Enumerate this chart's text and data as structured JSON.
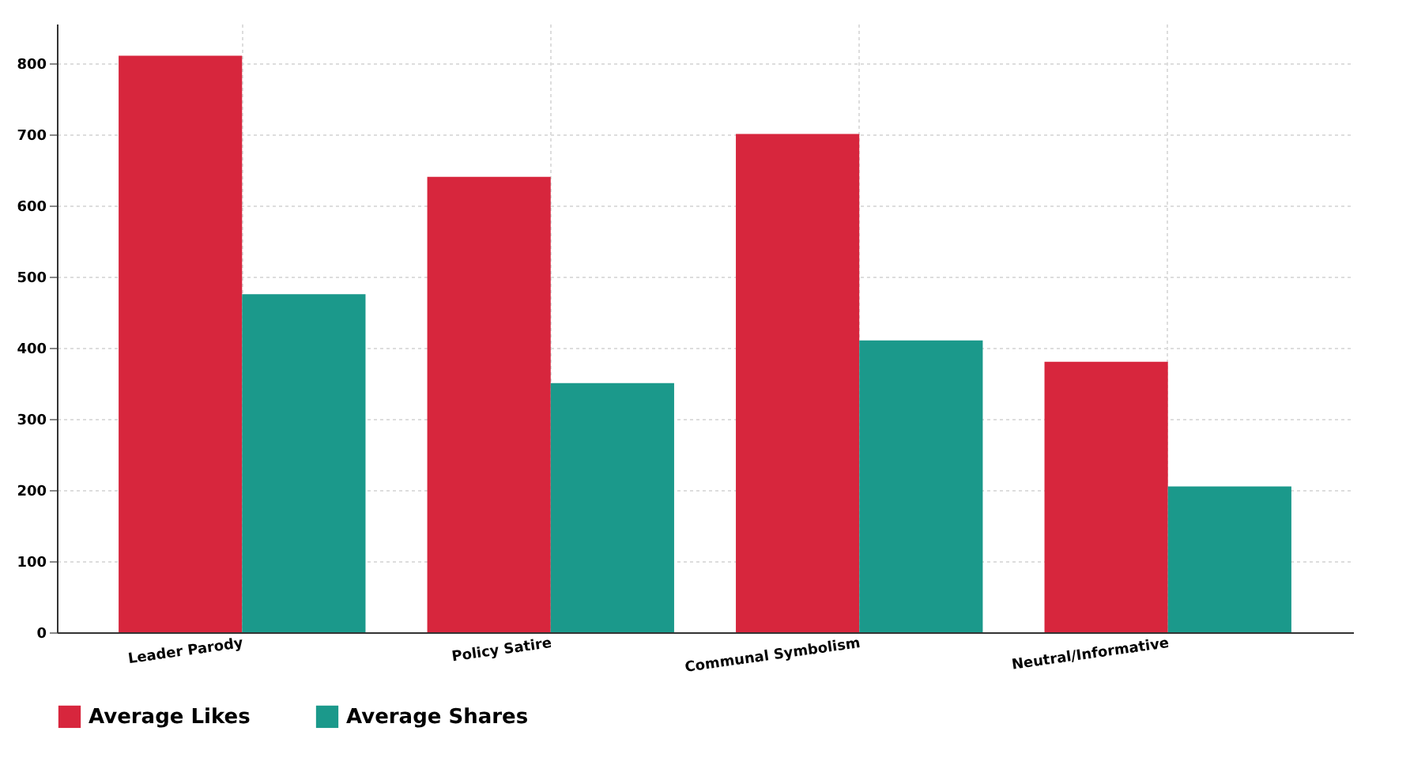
{
  "chart_data": {
    "type": "bar",
    "categories": [
      "Leader Parody",
      "Policy Satire",
      "Communal Symbolism",
      "Neutral/Informative"
    ],
    "series": [
      {
        "name": "Average Likes",
        "color": "#d7263d",
        "values": [
          810,
          640,
          700,
          380
        ]
      },
      {
        "name": "Average Shares",
        "color": "#1b998b",
        "values": [
          475,
          350,
          410,
          205
        ]
      }
    ],
    "ylim": [
      0,
      855
    ],
    "yticks": [
      0,
      100,
      200,
      300,
      400,
      500,
      600,
      700,
      800
    ],
    "grid": true,
    "legend": "bottom"
  }
}
